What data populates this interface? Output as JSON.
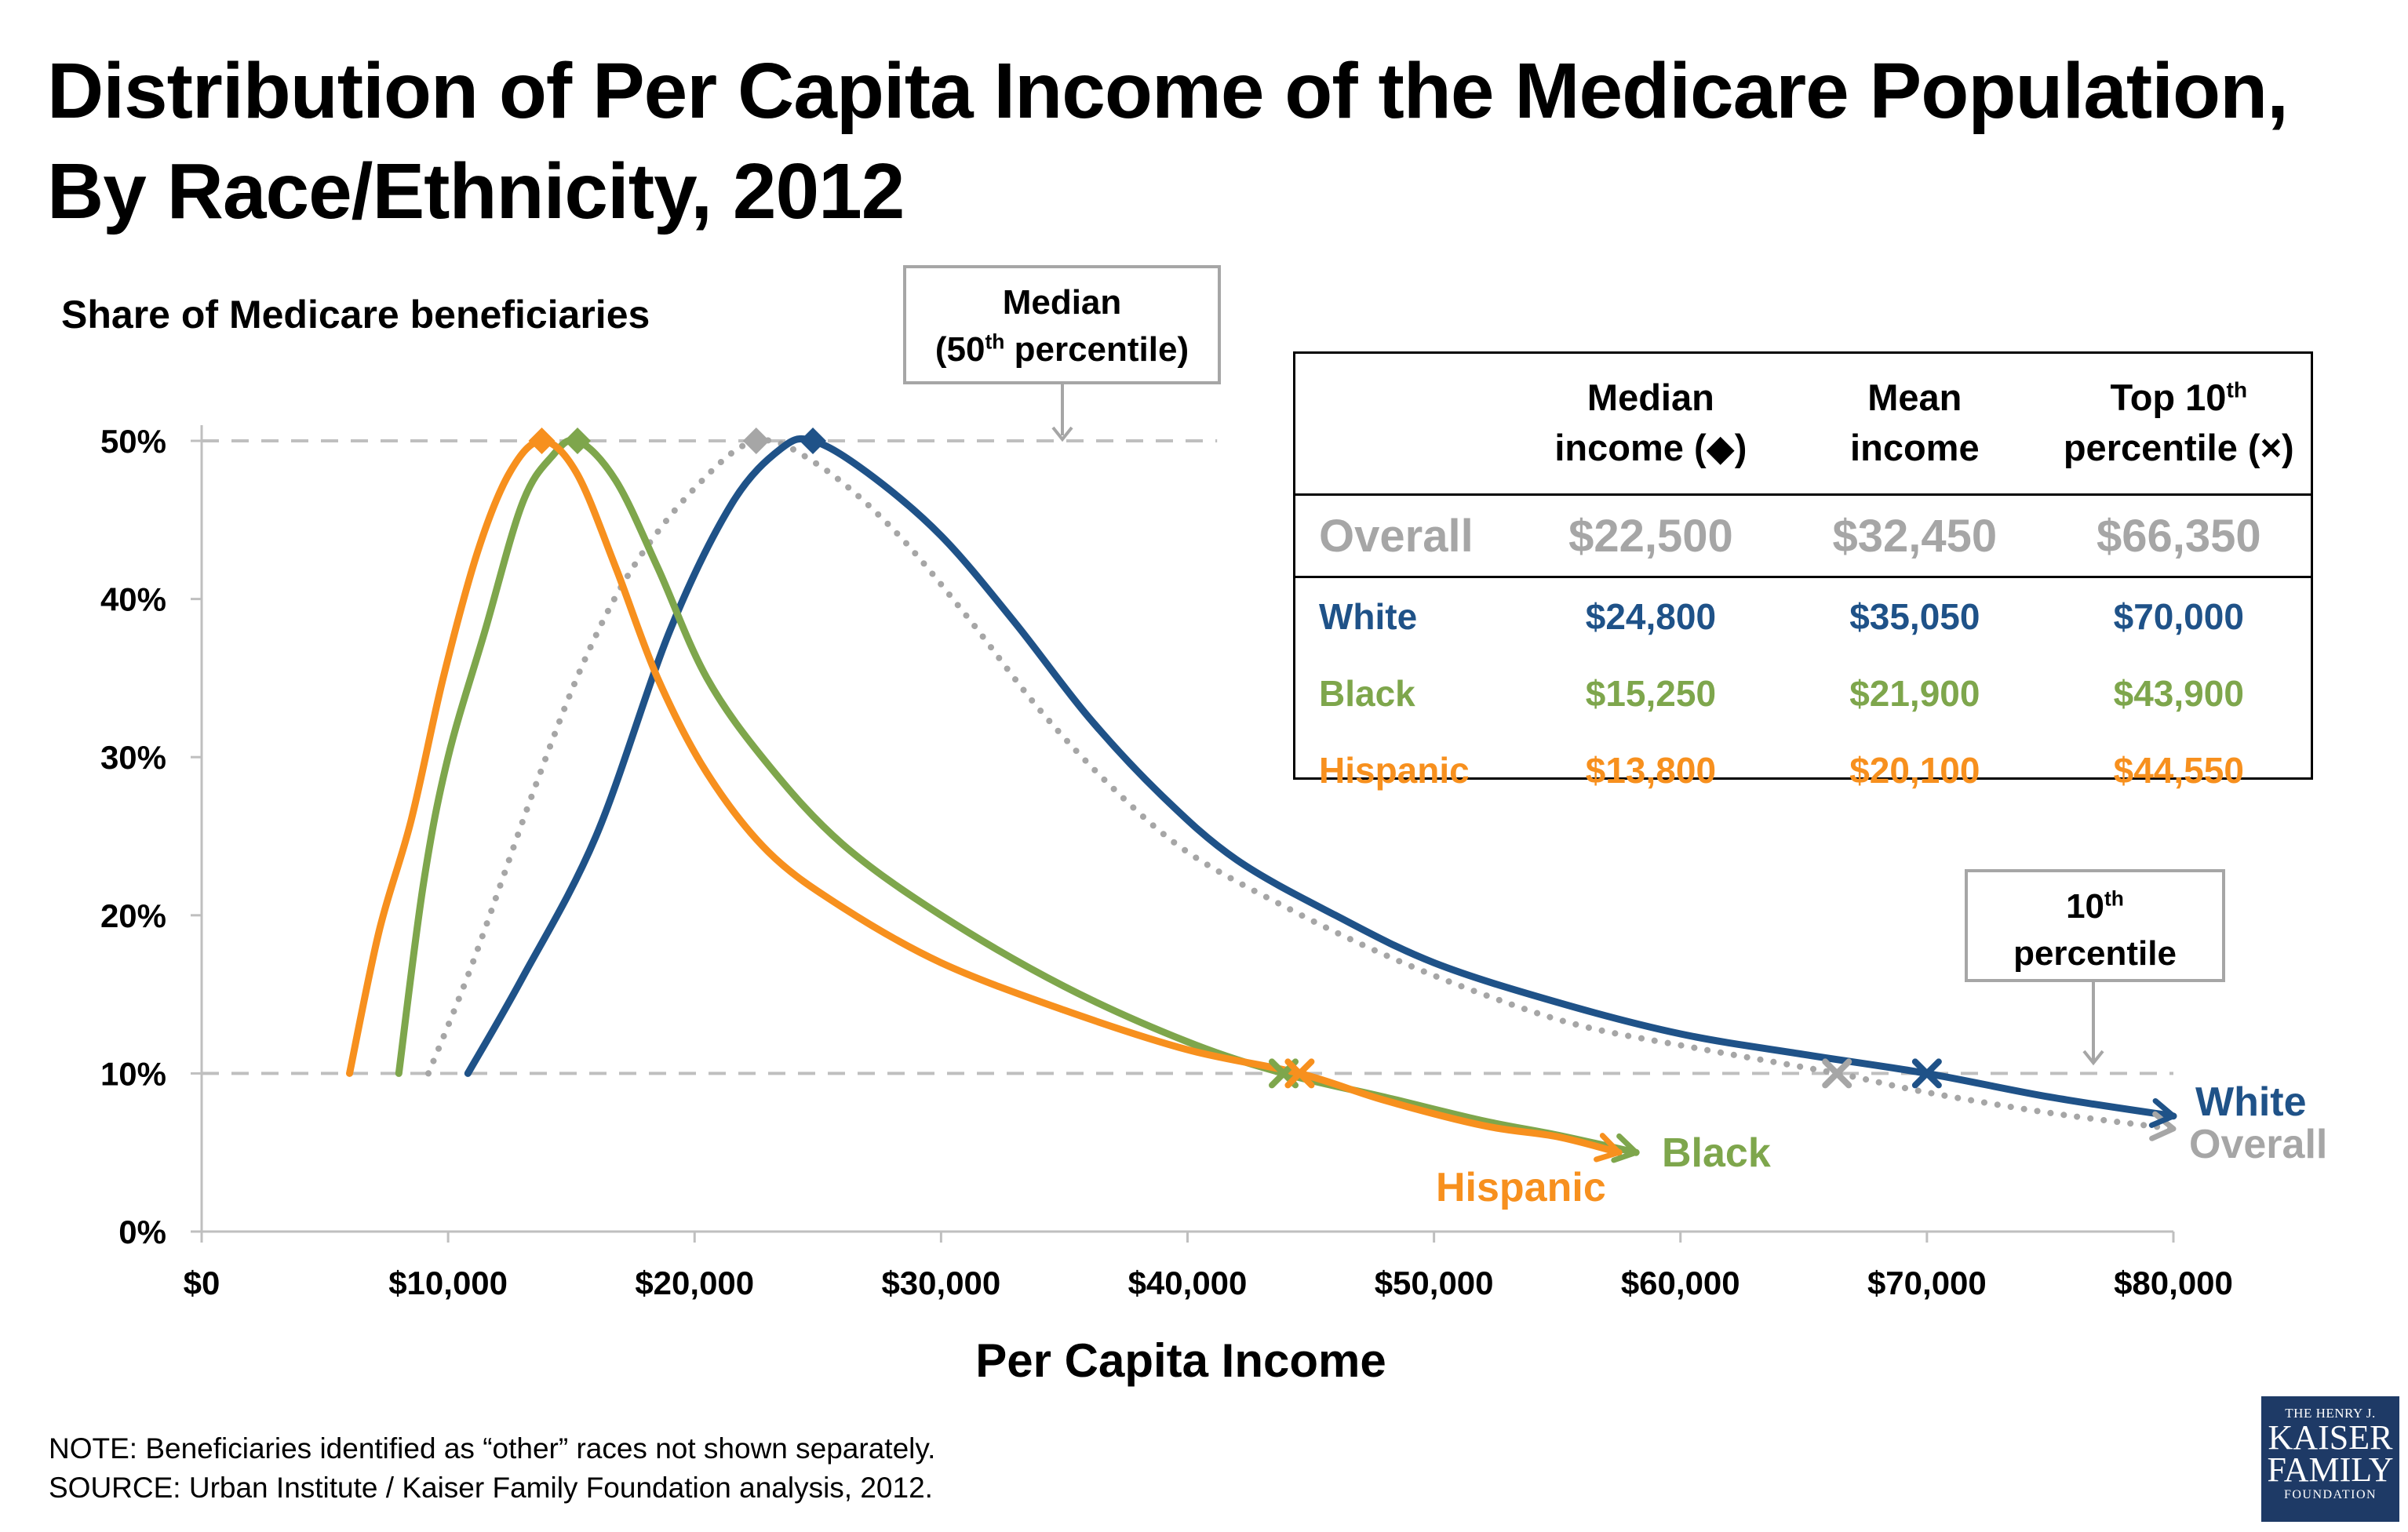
{
  "title": {
    "line1": "Distribution of Per Capita Income of the Medicare Population,",
    "line2": "By Race/Ethnicity, 2012"
  },
  "chart_data": {
    "type": "line",
    "title": "Distribution of Per Capita Income of the Medicare Population, By Race/Ethnicity, 2012",
    "xlabel": "Per Capita Income",
    "ylabel": "Share of Medicare beneficiaries",
    "xlim": [
      0,
      80000
    ],
    "ylim": [
      0,
      0.5
    ],
    "x_ticks": [
      "$0",
      "$10,000",
      "$20,000",
      "$30,000",
      "$40,000",
      "$50,000",
      "$60,000",
      "$70,000",
      "$80,000"
    ],
    "y_ticks": [
      "0%",
      "10%",
      "20%",
      "30%",
      "40%",
      "50%"
    ],
    "grid": false,
    "reference_lines": [
      {
        "y": 0.5,
        "label": "Median (50th percentile)"
      },
      {
        "y": 0.1,
        "label": "10th percentile"
      }
    ],
    "series": [
      {
        "name": "White",
        "color": "#1f5288",
        "style": "solid",
        "points": [
          [
            10800,
            0.1
          ],
          [
            13000,
            0.16
          ],
          [
            16000,
            0.25
          ],
          [
            19000,
            0.38
          ],
          [
            21500,
            0.46
          ],
          [
            23500,
            0.495
          ],
          [
            24800,
            0.5
          ],
          [
            27000,
            0.48
          ],
          [
            30000,
            0.44
          ],
          [
            33000,
            0.385
          ],
          [
            36000,
            0.325
          ],
          [
            39000,
            0.275
          ],
          [
            42000,
            0.235
          ],
          [
            46000,
            0.2
          ],
          [
            50000,
            0.17
          ],
          [
            55000,
            0.145
          ],
          [
            60000,
            0.125
          ],
          [
            65000,
            0.112
          ],
          [
            70000,
            0.1
          ],
          [
            75000,
            0.085
          ],
          [
            80000,
            0.073
          ]
        ],
        "median": 24800,
        "top10": 70000,
        "end_arrow": true
      },
      {
        "name": "Overall",
        "color": "#a6a6a6",
        "style": "dotted",
        "points": [
          [
            9200,
            0.1
          ],
          [
            11000,
            0.17
          ],
          [
            13500,
            0.28
          ],
          [
            15500,
            0.36
          ],
          [
            17500,
            0.42
          ],
          [
            20000,
            0.47
          ],
          [
            22500,
            0.5
          ],
          [
            25000,
            0.485
          ],
          [
            28000,
            0.445
          ],
          [
            31000,
            0.39
          ],
          [
            34000,
            0.33
          ],
          [
            37000,
            0.28
          ],
          [
            40000,
            0.24
          ],
          [
            44000,
            0.205
          ],
          [
            48000,
            0.175
          ],
          [
            52000,
            0.15
          ],
          [
            56000,
            0.13
          ],
          [
            61000,
            0.115
          ],
          [
            66350,
            0.1
          ],
          [
            70000,
            0.088
          ],
          [
            75000,
            0.075
          ],
          [
            80000,
            0.065
          ]
        ],
        "median": 22500,
        "top10": 66350,
        "end_arrow": true
      },
      {
        "name": "Black",
        "color": "#7ea64c",
        "style": "solid",
        "points": [
          [
            8000,
            0.1
          ],
          [
            9000,
            0.22
          ],
          [
            10000,
            0.3
          ],
          [
            11500,
            0.38
          ],
          [
            13000,
            0.46
          ],
          [
            14200,
            0.49
          ],
          [
            15250,
            0.5
          ],
          [
            16800,
            0.475
          ],
          [
            18500,
            0.42
          ],
          [
            20500,
            0.35
          ],
          [
            23000,
            0.295
          ],
          [
            26000,
            0.245
          ],
          [
            30000,
            0.2
          ],
          [
            35000,
            0.155
          ],
          [
            40000,
            0.12
          ],
          [
            43900,
            0.1
          ],
          [
            48000,
            0.085
          ],
          [
            52000,
            0.07
          ],
          [
            55000,
            0.061
          ],
          [
            58200,
            0.05
          ]
        ],
        "median": 15250,
        "top10": 43900,
        "end_arrow": true
      },
      {
        "name": "Hispanic",
        "color": "#f7901e",
        "style": "solid",
        "points": [
          [
            6000,
            0.1
          ],
          [
            7200,
            0.19
          ],
          [
            8500,
            0.26
          ],
          [
            9800,
            0.35
          ],
          [
            11200,
            0.43
          ],
          [
            12500,
            0.48
          ],
          [
            13800,
            0.5
          ],
          [
            15200,
            0.48
          ],
          [
            16800,
            0.42
          ],
          [
            18500,
            0.35
          ],
          [
            20500,
            0.29
          ],
          [
            23000,
            0.24
          ],
          [
            26000,
            0.205
          ],
          [
            30000,
            0.17
          ],
          [
            35000,
            0.14
          ],
          [
            40000,
            0.115
          ],
          [
            44550,
            0.1
          ],
          [
            48000,
            0.083
          ],
          [
            52000,
            0.067
          ],
          [
            55000,
            0.06
          ],
          [
            57500,
            0.05
          ]
        ],
        "median": 13800,
        "top10": 44550,
        "end_arrow": true
      }
    ]
  },
  "series_labels": {
    "white": "White",
    "overall": "Overall",
    "black": "Black",
    "hispanic": "Hispanic"
  },
  "callouts": {
    "median": {
      "line1": "Median",
      "line2_pre": "(50",
      "line2_sup": "th",
      "line2_post": " percentile)"
    },
    "tenth": {
      "line1_pre": "10",
      "line1_sup": "th",
      "line2": "percentile"
    }
  },
  "table": {
    "headers": {
      "median_line1": "Median",
      "median_line2": "income (◆)",
      "mean_line1": "Mean",
      "mean_line2": "income",
      "top_line1_pre": "Top 10",
      "top_line1_sup": "th",
      "top_line2": "percentile (×)"
    },
    "rows": [
      {
        "label": "Overall",
        "median": "$22,500",
        "mean": "$32,450",
        "top10": "$66,350",
        "color": "#a6a6a6"
      },
      {
        "label": "White",
        "median": "$24,800",
        "mean": "$35,050",
        "top10": "$70,000",
        "color": "#1f5288"
      },
      {
        "label": "Black",
        "median": "$15,250",
        "mean": "$21,900",
        "top10": "$43,900",
        "color": "#7ea64c"
      },
      {
        "label": "Hispanic",
        "median": "$13,800",
        "mean": "$20,100",
        "top10": "$44,550",
        "color": "#f7901e"
      }
    ]
  },
  "notes": {
    "note": "NOTE: Beneficiaries identified as “other” races not shown separately.",
    "source": "SOURCE: Urban Institute / Kaiser Family Foundation analysis, 2012."
  },
  "logo": {
    "line1": "THE HENRY J.",
    "line2": "KAISER",
    "line3": "FAMILY",
    "line4": "FOUNDATION"
  }
}
